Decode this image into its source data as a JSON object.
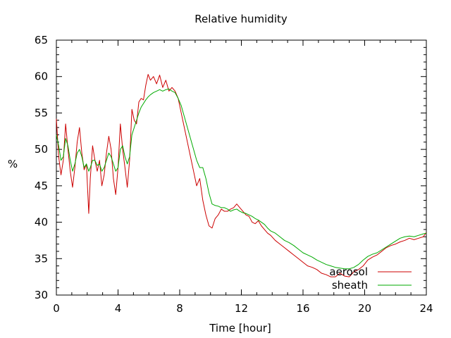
{
  "chart_data": {
    "type": "line",
    "title": "Relative humidity",
    "xlabel": "Time [hour]",
    "ylabel": "%",
    "xlim": [
      0,
      24
    ],
    "ylim": [
      30,
      65
    ],
    "xticks": [
      0,
      4,
      8,
      12,
      16,
      20,
      24
    ],
    "yticks": [
      30,
      35,
      40,
      45,
      50,
      55,
      60,
      65
    ],
    "grid": false,
    "legend_position": "bottom-right",
    "series": [
      {
        "name": "aerosol",
        "color": "#cc0000",
        "x": [
          0,
          0.15,
          0.3,
          0.45,
          0.6,
          0.75,
          0.9,
          1.05,
          1.2,
          1.35,
          1.5,
          1.65,
          1.8,
          1.95,
          2.1,
          2.2,
          2.35,
          2.5,
          2.65,
          2.8,
          2.95,
          3.1,
          3.25,
          3.4,
          3.55,
          3.7,
          3.85,
          4.0,
          4.15,
          4.3,
          4.45,
          4.6,
          4.75,
          4.9,
          5.05,
          5.2,
          5.35,
          5.5,
          5.65,
          5.8,
          5.95,
          6.1,
          6.3,
          6.5,
          6.7,
          6.9,
          7.1,
          7.3,
          7.5,
          7.7,
          7.9,
          8.1,
          8.3,
          8.5,
          8.7,
          8.9,
          9.1,
          9.3,
          9.5,
          9.7,
          9.9,
          10.1,
          10.3,
          10.5,
          10.7,
          10.9,
          11.1,
          11.3,
          11.5,
          11.7,
          11.9,
          12.1,
          12.3,
          12.5,
          12.7,
          12.9,
          13.1,
          13.3,
          13.5,
          13.7,
          13.9,
          14.2,
          14.5,
          14.8,
          15.1,
          15.4,
          15.7,
          16.0,
          16.3,
          16.6,
          16.9,
          17.2,
          17.5,
          17.8,
          18.1,
          18.4,
          18.7,
          19.0,
          19.3,
          19.6,
          19.9,
          20.2,
          20.5,
          20.8,
          21.1,
          21.4,
          21.7,
          22.0,
          22.3,
          22.6,
          22.9,
          23.2,
          23.5,
          23.8,
          24.0
        ],
        "y": [
          54.2,
          49.0,
          46.5,
          48.5,
          53.5,
          50.0,
          47.0,
          44.8,
          47.5,
          51.0,
          53.0,
          49.5,
          47.2,
          48.0,
          41.2,
          46.0,
          50.5,
          48.5,
          47.0,
          48.5,
          45.0,
          46.5,
          49.5,
          51.8,
          50.0,
          46.0,
          43.8,
          47.5,
          53.5,
          50.0,
          47.5,
          44.8,
          48.5,
          55.5,
          54.0,
          53.5,
          56.5,
          57.0,
          56.8,
          58.8,
          60.3,
          59.5,
          60.0,
          59.0,
          60.2,
          58.5,
          59.5,
          58.0,
          58.5,
          58.0,
          57.0,
          55.0,
          53.0,
          51.0,
          49.0,
          47.0,
          45.0,
          46.0,
          43.0,
          41.0,
          39.5,
          39.2,
          40.5,
          41.0,
          41.8,
          41.5,
          41.5,
          41.8,
          42.0,
          42.5,
          42.0,
          41.5,
          41.0,
          40.8,
          40.0,
          39.8,
          40.2,
          39.5,
          39.0,
          38.5,
          38.2,
          37.5,
          37.0,
          36.5,
          36.0,
          35.5,
          35.0,
          34.5,
          34.0,
          33.8,
          33.5,
          33.0,
          32.8,
          32.5,
          32.5,
          33.0,
          32.6,
          32.5,
          33.2,
          33.5,
          34.0,
          34.8,
          35.2,
          35.5,
          36.0,
          36.5,
          36.8,
          37.0,
          37.3,
          37.5,
          37.8,
          37.6,
          37.8,
          38.0,
          38.6
        ]
      },
      {
        "name": "sheath",
        "color": "#00aa00",
        "x": [
          0,
          0.15,
          0.3,
          0.45,
          0.6,
          0.75,
          0.9,
          1.05,
          1.2,
          1.35,
          1.5,
          1.65,
          1.8,
          1.95,
          2.1,
          2.2,
          2.35,
          2.5,
          2.65,
          2.8,
          2.95,
          3.1,
          3.25,
          3.4,
          3.55,
          3.7,
          3.85,
          4.0,
          4.15,
          4.3,
          4.45,
          4.6,
          4.75,
          4.9,
          5.05,
          5.2,
          5.35,
          5.5,
          5.65,
          5.8,
          5.95,
          6.1,
          6.3,
          6.5,
          6.7,
          6.9,
          7.1,
          7.3,
          7.5,
          7.7,
          7.9,
          8.1,
          8.3,
          8.5,
          8.7,
          8.9,
          9.1,
          9.3,
          9.5,
          9.7,
          9.9,
          10.1,
          10.3,
          10.5,
          10.7,
          10.9,
          11.1,
          11.3,
          11.5,
          11.7,
          11.9,
          12.1,
          12.3,
          12.5,
          12.7,
          12.9,
          13.1,
          13.3,
          13.5,
          13.7,
          13.9,
          14.2,
          14.5,
          14.8,
          15.1,
          15.4,
          15.7,
          16.0,
          16.3,
          16.6,
          16.9,
          17.2,
          17.5,
          17.8,
          18.1,
          18.4,
          18.7,
          19.0,
          19.3,
          19.6,
          19.9,
          20.2,
          20.5,
          20.8,
          21.1,
          21.4,
          21.7,
          22.0,
          22.3,
          22.6,
          22.9,
          23.2,
          23.5,
          23.8,
          24.0
        ],
        "y": [
          52.0,
          50.5,
          48.5,
          49.0,
          51.5,
          50.5,
          48.5,
          47.0,
          48.0,
          49.5,
          50.0,
          49.0,
          47.5,
          48.0,
          47.0,
          47.5,
          48.5,
          48.5,
          47.8,
          48.0,
          47.0,
          47.5,
          48.5,
          49.5,
          49.0,
          48.0,
          47.0,
          47.5,
          50.0,
          50.5,
          49.0,
          48.0,
          49.0,
          52.0,
          53.0,
          54.0,
          55.0,
          55.8,
          56.3,
          56.8,
          57.2,
          57.5,
          57.8,
          58.0,
          58.2,
          58.0,
          58.2,
          58.3,
          58.0,
          57.8,
          57.0,
          56.0,
          54.5,
          53.0,
          51.5,
          50.0,
          48.5,
          47.5,
          47.5,
          46.0,
          44.0,
          42.5,
          42.3,
          42.2,
          42.0,
          42.0,
          41.8,
          41.5,
          41.7,
          41.8,
          41.5,
          41.3,
          41.2,
          41.0,
          40.8,
          40.5,
          40.3,
          40.0,
          39.7,
          39.2,
          38.8,
          38.5,
          38.0,
          37.5,
          37.2,
          36.8,
          36.3,
          35.8,
          35.5,
          35.2,
          34.8,
          34.5,
          34.2,
          34.0,
          33.8,
          33.7,
          33.6,
          33.6,
          33.8,
          34.2,
          34.8,
          35.3,
          35.6,
          35.8,
          36.2,
          36.6,
          37.0,
          37.4,
          37.8,
          38.0,
          38.1,
          38.0,
          38.2,
          38.4,
          38.5
        ]
      }
    ]
  }
}
